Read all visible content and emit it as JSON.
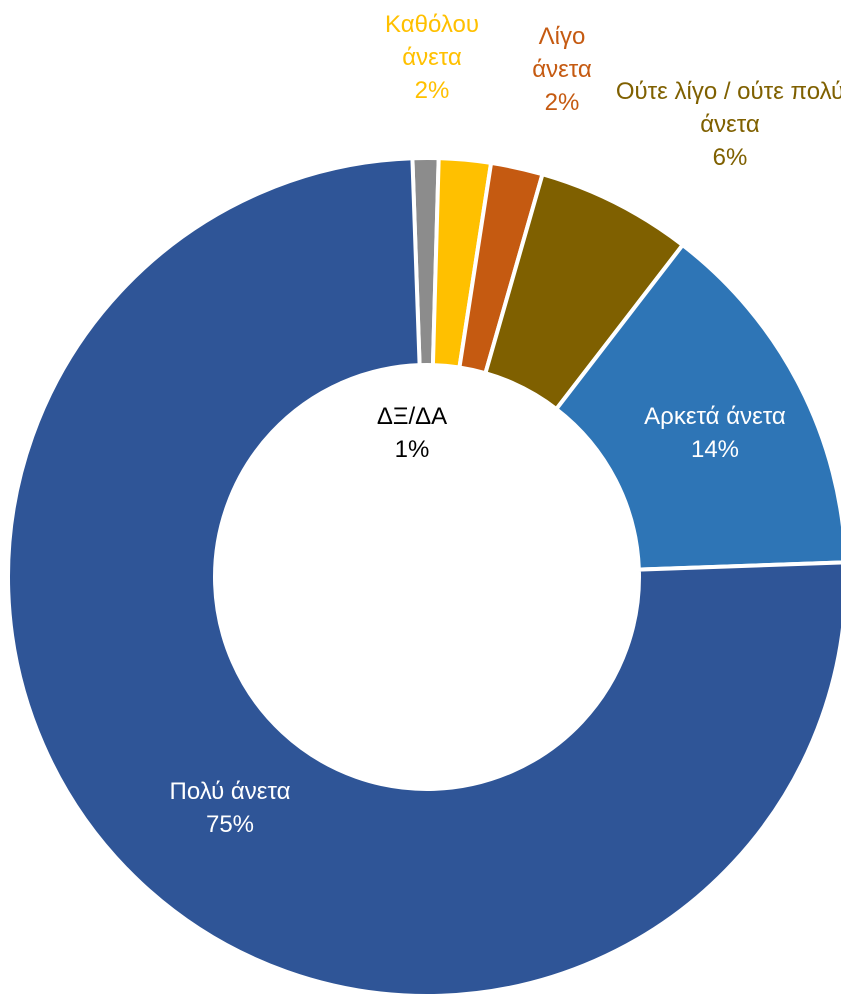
{
  "chart_data": {
    "type": "pie",
    "categories": [
      "ΔΞ/ΔΑ",
      "Καθόλου άνετα",
      "Λίγο άνετα",
      "Ούτε λίγο / ούτε πολύ άνετα",
      "Αρκετά άνετα",
      "Πολύ άνετα"
    ],
    "values": [
      1,
      2,
      2,
      6,
      14,
      75
    ],
    "value_labels": [
      "1%",
      "2%",
      "2%",
      "6%",
      "14%",
      "75%"
    ],
    "colors": [
      "#8c8c8c",
      "#ffc000",
      "#c55a11",
      "#7f6000",
      "#2e75b6",
      "#2f5597"
    ]
  }
}
